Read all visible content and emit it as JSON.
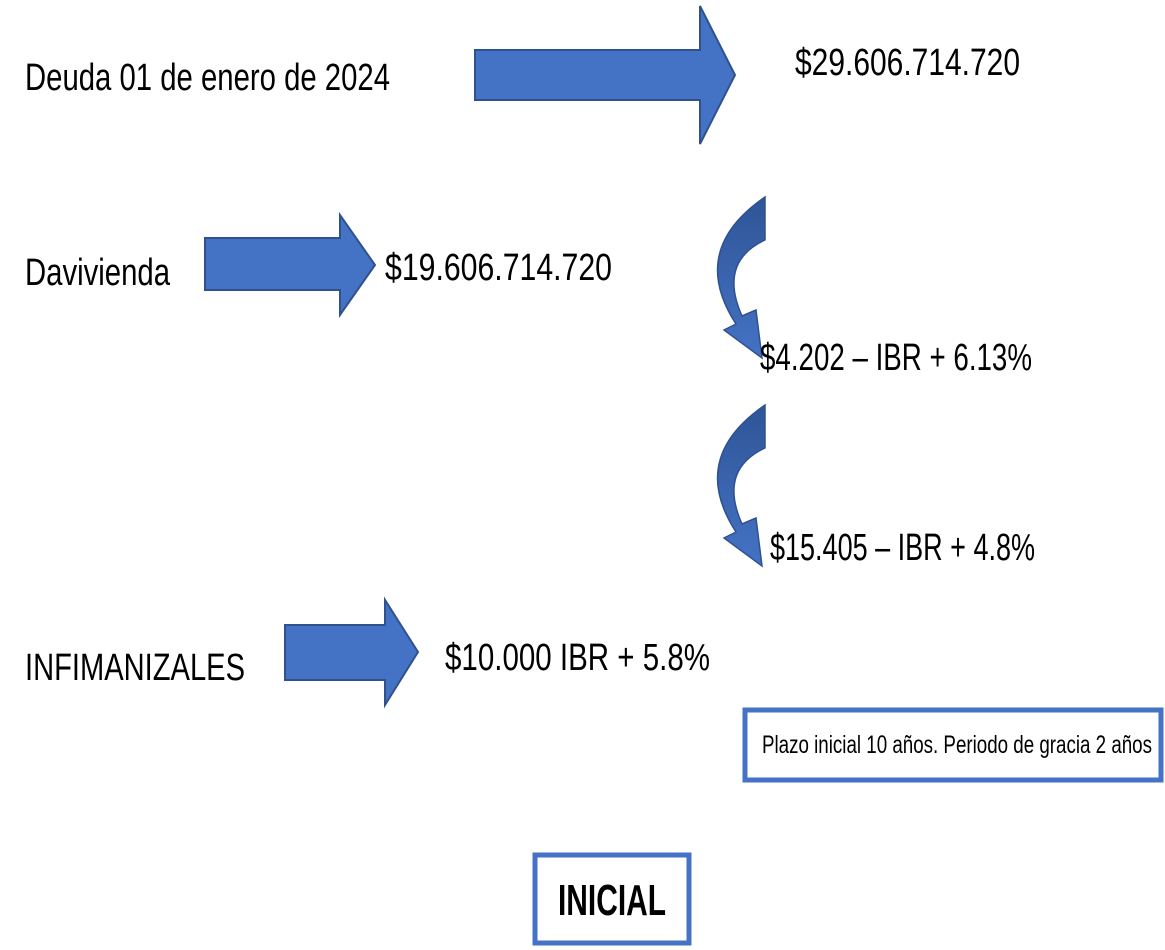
{
  "debt": {
    "label": "Deuda 01 de enero de 2024",
    "amount": "$29.606.714.720"
  },
  "banks": [
    {
      "name": "Davivienda",
      "amount": "$19.606.714.720",
      "tranches": [
        "$4.202 – IBR + 6.13%",
        "$15.405 – IBR + 4.8%"
      ]
    },
    {
      "name": "INFIMANIZALES",
      "amount": "$10.000 IBR + 5.8%",
      "note": "Plazo inicial 10 años. Periodo de gracia 2 años"
    }
  ],
  "button": "INICIAL"
}
